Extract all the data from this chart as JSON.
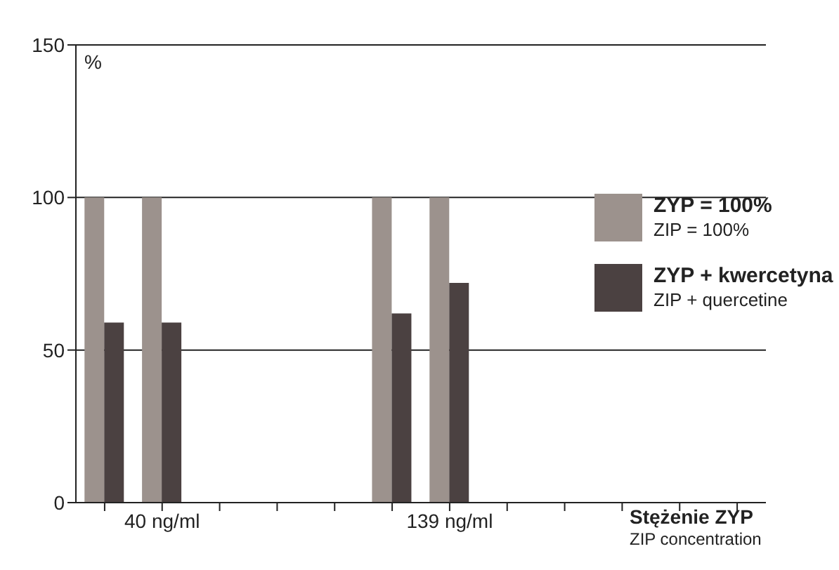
{
  "chart_data": {
    "type": "bar",
    "ylabel": "%",
    "xlabel": "Stężenie ZYP\nZIP concentration",
    "categories": [
      null,
      "40 ng/ml",
      null,
      null,
      null,
      null,
      "139 ng/ml",
      null,
      null,
      null,
      null,
      null
    ],
    "series": [
      {
        "name": "ZYP = 100%\nZIP = 100%",
        "color": "#9c928d",
        "values": [
          100,
          100,
          null,
          null,
          null,
          100,
          100,
          null,
          null,
          null,
          null,
          null
        ]
      },
      {
        "name": "ZYP + kwercetyna\nZIP + quercetine",
        "color": "#4b4141",
        "values": [
          59,
          59,
          null,
          null,
          null,
          62,
          72,
          null,
          null,
          null,
          null,
          null
        ]
      }
    ],
    "ylim": [
      0,
      150
    ],
    "yticks": [
      0,
      50,
      100,
      150
    ],
    "grid": "y",
    "legend": "right"
  }
}
